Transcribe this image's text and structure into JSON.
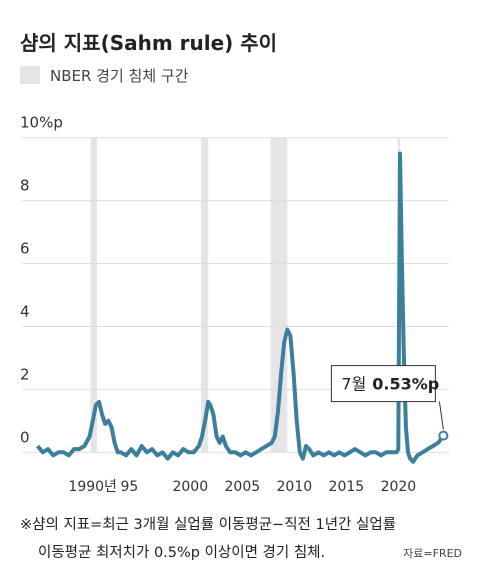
{
  "chart_data": {
    "type": "line",
    "title": "샴의 지표(Sahm rule) 추이",
    "legend_label": "NBER 경기 침체 구간",
    "recession_color": "#e5e5e5",
    "recessions": [
      [
        1990.6,
        1991.2
      ],
      [
        2001.2,
        2001.9
      ],
      [
        2007.9,
        2009.5
      ],
      [
        2020.1,
        2020.35
      ]
    ],
    "color": "#3b7f9c",
    "x": [
      1985.5,
      1986,
      1986.5,
      1987,
      1987.5,
      1988,
      1988.5,
      1989,
      1989.5,
      1990,
      1990.5,
      1990.8,
      1991.1,
      1991.4,
      1991.7,
      1992,
      1992.3,
      1992.6,
      1992.9,
      1993.2,
      1993.5,
      1994,
      1994.5,
      1995,
      1995.5,
      1996,
      1996.5,
      1997,
      1997.5,
      1998,
      1998.5,
      1999,
      1999.5,
      2000,
      2000.5,
      2001,
      2001.3,
      2001.6,
      2001.9,
      2002.1,
      2002.4,
      2002.7,
      2003,
      2003.3,
      2003.6,
      2004,
      2004.5,
      2005,
      2005.5,
      2006,
      2006.5,
      2007,
      2007.5,
      2008,
      2008.3,
      2008.6,
      2008.9,
      2009.2,
      2009.5,
      2009.8,
      2010.1,
      2010.4,
      2010.7,
      2011,
      2011.3,
      2011.6,
      2012,
      2012.5,
      2013,
      2013.5,
      2014,
      2014.5,
      2015,
      2015.5,
      2016,
      2016.5,
      2017,
      2017.5,
      2018,
      2018.5,
      2019,
      2019.5,
      2020,
      2020.17,
      2020.33,
      2020.5,
      2020.7,
      2020.9,
      2021.1,
      2021.3,
      2021.6,
      2022,
      2022.5,
      2023,
      2023.5,
      2024,
      2024.5
    ],
    "values": [
      0.2,
      0.0,
      0.1,
      -0.1,
      0.0,
      0.0,
      -0.1,
      0.1,
      0.1,
      0.2,
      0.5,
      1.0,
      1.5,
      1.6,
      1.2,
      0.9,
      1.0,
      0.8,
      0.3,
      0.0,
      0.0,
      -0.1,
      0.1,
      -0.1,
      0.2,
      0.0,
      0.1,
      -0.1,
      0.0,
      -0.2,
      0.0,
      -0.1,
      0.1,
      0.0,
      0.0,
      0.2,
      0.5,
      1.0,
      1.6,
      1.5,
      1.2,
      0.5,
      0.3,
      0.5,
      0.2,
      0.0,
      0.0,
      -0.1,
      0.0,
      -0.1,
      0.0,
      0.1,
      0.2,
      0.3,
      0.5,
      1.3,
      2.5,
      3.5,
      3.9,
      3.7,
      2.5,
      1.0,
      0.0,
      -0.2,
      0.2,
      0.1,
      -0.1,
      0.0,
      -0.1,
      0.0,
      -0.1,
      0.0,
      -0.1,
      0.0,
      0.1,
      0.0,
      -0.1,
      0.0,
      0.0,
      -0.1,
      0.0,
      0.0,
      0.0,
      0.1,
      9.5,
      6.2,
      3.0,
      0.8,
      0.0,
      -0.2,
      -0.3,
      -0.1,
      0.0,
      0.1,
      0.2,
      0.3,
      0.53
    ],
    "value_labels": [
      null,
      null,
      null,
      null,
      null,
      null,
      null,
      null,
      null,
      null,
      null,
      null,
      null,
      null,
      null,
      null,
      null,
      null,
      null,
      null,
      null,
      null,
      null,
      null,
      null,
      null,
      null,
      null,
      null,
      null,
      null,
      null,
      null,
      null,
      null,
      null,
      null,
      null,
      null,
      null,
      null,
      null,
      null,
      null,
      null,
      null,
      null,
      null,
      null,
      null,
      null,
      null,
      null,
      null,
      null,
      null,
      null,
      null,
      null,
      null,
      null,
      null,
      null,
      null,
      null,
      null,
      null,
      null,
      null,
      null,
      null,
      null,
      null,
      null,
      null,
      null,
      null,
      null,
      null,
      null,
      null,
      null,
      null,
      null,
      null,
      null,
      null,
      null,
      null,
      null,
      null,
      null,
      null,
      null,
      null,
      null,
      "0.53%p"
    ],
    "annotation": "7월",
    "xlim": [
      1984,
      2026
    ],
    "xticks": [
      {
        "value": 1990,
        "label": "1990년"
      },
      {
        "value": 1995,
        "label": "95"
      },
      2000,
      2005,
      2010,
      2015,
      2020
    ],
    "ylim": [
      -0.5,
      10.5
    ],
    "yticks": [
      0,
      2,
      4,
      6,
      8,
      {
        "value": 10,
        "label": "10%p"
      }
    ],
    "grid": true,
    "note": [
      "※샴의 지표=최근 3개월 실업률 이동평균−직전 1년간 실업률",
      "이동평균 최저치가 0.5%p 이상이면 경기 침체."
    ],
    "source": "자료=FRED"
  }
}
